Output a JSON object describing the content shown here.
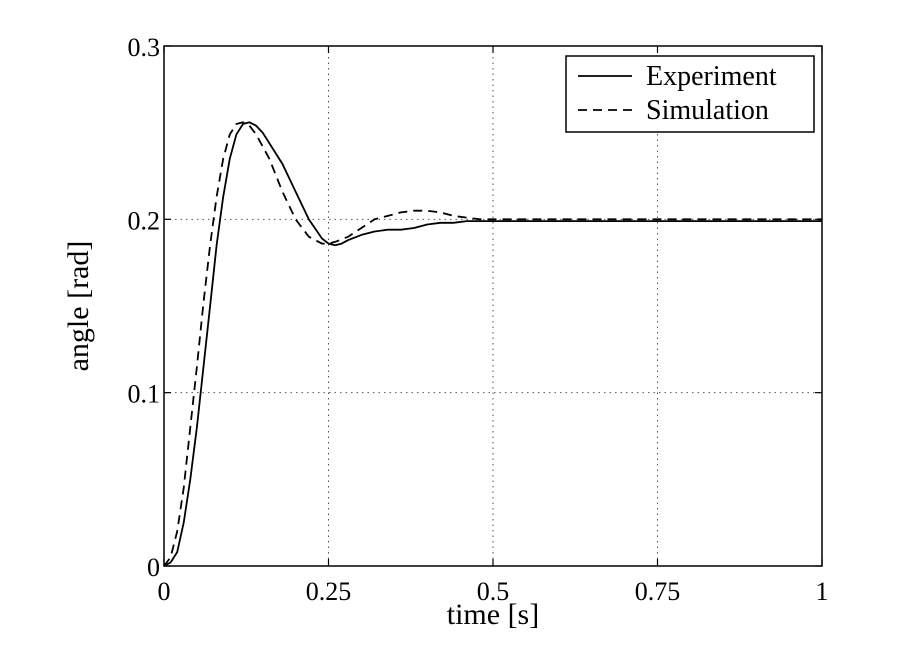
{
  "chart_data": {
    "type": "line",
    "xlabel": "time [s]",
    "ylabel": "angle [rad]",
    "xlim": [
      0,
      1
    ],
    "ylim": [
      0,
      0.3
    ],
    "xticks": [
      0,
      0.25,
      0.5,
      0.75,
      1
    ],
    "xtick_labels": [
      "0",
      "0.25",
      "0.5",
      "0.75",
      "1"
    ],
    "yticks": [
      0,
      0.1,
      0.2,
      0.3
    ],
    "ytick_labels": [
      "0",
      "0.1",
      "0.2",
      "0.3"
    ],
    "grid": true,
    "legend_position": "top-right",
    "series": [
      {
        "name": "Experiment",
        "style": "solid",
        "color": "#000000",
        "x": [
          0,
          0.01,
          0.02,
          0.03,
          0.04,
          0.05,
          0.06,
          0.07,
          0.08,
          0.09,
          0.1,
          0.11,
          0.12,
          0.13,
          0.14,
          0.15,
          0.16,
          0.18,
          0.2,
          0.22,
          0.24,
          0.25,
          0.26,
          0.27,
          0.28,
          0.3,
          0.32,
          0.34,
          0.36,
          0.38,
          0.4,
          0.42,
          0.44,
          0.46,
          0.5,
          0.6,
          0.7,
          0.8,
          0.9,
          1.0
        ],
        "y": [
          0,
          0.002,
          0.008,
          0.025,
          0.05,
          0.08,
          0.115,
          0.15,
          0.185,
          0.213,
          0.235,
          0.249,
          0.255,
          0.256,
          0.254,
          0.25,
          0.244,
          0.232,
          0.216,
          0.2,
          0.189,
          0.186,
          0.185,
          0.186,
          0.188,
          0.191,
          0.193,
          0.194,
          0.194,
          0.195,
          0.197,
          0.198,
          0.198,
          0.199,
          0.199,
          0.199,
          0.199,
          0.199,
          0.199,
          0.199
        ]
      },
      {
        "name": "Simulation",
        "style": "dashed",
        "color": "#000000",
        "x": [
          0,
          0.01,
          0.02,
          0.03,
          0.04,
          0.05,
          0.06,
          0.07,
          0.08,
          0.09,
          0.1,
          0.11,
          0.12,
          0.13,
          0.14,
          0.16,
          0.18,
          0.2,
          0.22,
          0.24,
          0.25,
          0.26,
          0.28,
          0.3,
          0.32,
          0.34,
          0.36,
          0.38,
          0.4,
          0.42,
          0.44,
          0.46,
          0.48,
          0.5,
          0.6,
          0.7,
          0.8,
          0.9,
          1.0
        ],
        "y": [
          0,
          0.005,
          0.02,
          0.045,
          0.08,
          0.115,
          0.152,
          0.185,
          0.213,
          0.235,
          0.249,
          0.255,
          0.256,
          0.254,
          0.249,
          0.235,
          0.216,
          0.2,
          0.19,
          0.186,
          0.186,
          0.187,
          0.19,
          0.195,
          0.2,
          0.202,
          0.204,
          0.205,
          0.205,
          0.204,
          0.202,
          0.201,
          0.2,
          0.2,
          0.2,
          0.2,
          0.2,
          0.2,
          0.2
        ]
      }
    ]
  }
}
